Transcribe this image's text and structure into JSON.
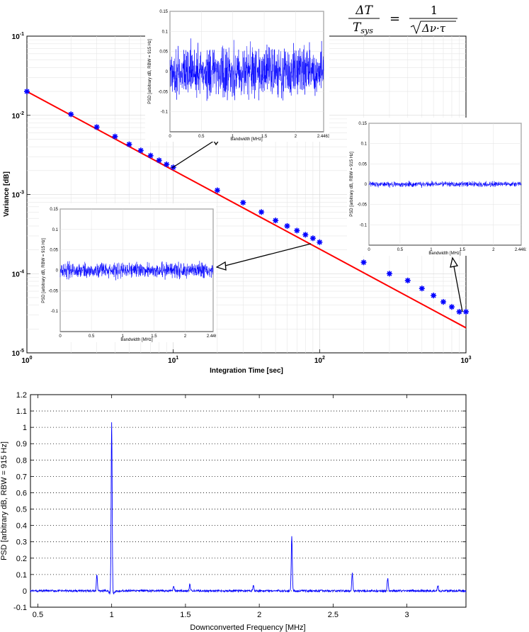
{
  "formula": {
    "numerator": "ΔT",
    "denominator_main": "T",
    "denominator_sub": "sys",
    "equals": "=",
    "rhs_numerator": "1",
    "rhs_radicand": "Δν·τ"
  },
  "chart_data": [
    {
      "id": "variance",
      "type": "scatter",
      "xscale": "log",
      "yscale": "log",
      "xlim": [
        1,
        1000
      ],
      "ylim": [
        1e-05,
        0.1
      ],
      "xlabel": "Integration Time [sec]",
      "ylabel": "Variance [dB]",
      "x_major_ticks": [
        1,
        10,
        100,
        1000
      ],
      "x_tick_labels": [
        {
          "base": "10",
          "exp": "0"
        },
        {
          "base": "10",
          "exp": "1"
        },
        {
          "base": "10",
          "exp": "2"
        },
        {
          "base": "10",
          "exp": "3"
        }
      ],
      "y_major_ticks": [
        1e-05,
        0.0001,
        0.001,
        0.01,
        0.1
      ],
      "y_tick_labels": [
        {
          "base": "10",
          "exp": "-5"
        },
        {
          "base": "10",
          "exp": "-4"
        },
        {
          "base": "10",
          "exp": "-3"
        },
        {
          "base": "10",
          "exp": "-2"
        },
        {
          "base": "10",
          "exp": "-1"
        }
      ],
      "grid": true,
      "series": [
        {
          "kind": "points",
          "marker": "asterisk",
          "color": "#0000ff",
          "points": [
            [
              1,
              0.02
            ],
            [
              2,
              0.0103
            ],
            [
              3,
              0.0071
            ],
            [
              4,
              0.0054
            ],
            [
              5,
              0.0043
            ],
            [
              6,
              0.0036
            ],
            [
              7,
              0.0031
            ],
            [
              8,
              0.0027
            ],
            [
              9,
              0.0024
            ],
            [
              10,
              0.0022
            ],
            [
              20,
              0.00113
            ],
            [
              30,
              0.00079
            ],
            [
              40,
              0.0006
            ],
            [
              50,
              0.00047
            ],
            [
              60,
              0.0004
            ],
            [
              70,
              0.00035
            ],
            [
              80,
              0.00031
            ],
            [
              90,
              0.00028
            ],
            [
              100,
              0.00025
            ],
            [
              200,
              0.000139
            ],
            [
              300,
              0.0001
            ],
            [
              400,
              8.2e-05
            ],
            [
              500,
              6.5e-05
            ],
            [
              600,
              5.3e-05
            ],
            [
              700,
              4.4e-05
            ],
            [
              800,
              3.8e-05
            ],
            [
              900,
              3.3e-05
            ],
            [
              1000,
              3.3e-05
            ]
          ]
        },
        {
          "kind": "line",
          "color": "#ff0000",
          "points": [
            [
              1,
              0.02
            ],
            [
              1000,
              2.07e-05
            ]
          ]
        }
      ]
    },
    {
      "id": "inset-1",
      "type": "line",
      "xlim": [
        0,
        2.4463
      ],
      "ylim": [
        -0.15,
        0.15
      ],
      "x_tick_values": [
        0,
        0.5,
        1,
        1.5,
        2,
        2.4463
      ],
      "x_tick_labels": [
        "0",
        "0.5",
        "1",
        "1.5",
        "2",
        "2.4463"
      ],
      "y_tick_values": [
        -0.1,
        -0.05,
        0,
        0.05,
        0.1,
        0.15
      ],
      "y_tick_labels": [
        "-0.1",
        "-0.05",
        "0",
        "0.05",
        "0.1",
        "0.15"
      ],
      "xlabel": "Bandwidth [MHz]",
      "ylabel": "PSD [arbitrary dB, RBW = 915 Hz]",
      "noise_amplitude": 0.075,
      "color": "#0000ff"
    },
    {
      "id": "inset-2",
      "type": "line",
      "xlim": [
        0,
        2.4463
      ],
      "ylim": [
        -0.15,
        0.15
      ],
      "x_tick_values": [
        0,
        0.5,
        1,
        1.5,
        2,
        2.4463
      ],
      "x_tick_labels": [
        "0",
        "0.5",
        "1",
        "1.5",
        "2",
        "2.4463"
      ],
      "y_tick_values": [
        -0.1,
        -0.05,
        0,
        0.05,
        0.1,
        0.15
      ],
      "y_tick_labels": [
        "-0.1",
        "-0.05",
        "0",
        "0.05",
        "0.1",
        "0.15"
      ],
      "xlabel": "Bandwidth [MHz]",
      "ylabel": "PSD [arbitrary dB, RBW = 915 Hz]",
      "noise_amplitude": 0.022,
      "color": "#0000ff"
    },
    {
      "id": "inset-3",
      "type": "line",
      "xlim": [
        0,
        2.4463
      ],
      "ylim": [
        -0.15,
        0.15
      ],
      "x_tick_values": [
        0,
        0.5,
        1,
        1.5,
        2,
        2.4463
      ],
      "x_tick_labels": [
        "0",
        "0.5",
        "1",
        "1.5",
        "2",
        "2.4463"
      ],
      "y_tick_values": [
        -0.1,
        -0.05,
        0,
        0.05,
        0.1,
        0.15
      ],
      "y_tick_labels": [
        "-0.1",
        "-0.05",
        "0",
        "0.05",
        "0.1",
        "0.15"
      ],
      "xlabel": "Bandwidth [MHz]",
      "ylabel": "PSD [arbitrary dB, RBW = 915 Hz]",
      "noise_amplitude": 0.008,
      "color": "#0000ff"
    },
    {
      "id": "psd",
      "type": "line",
      "xlim": [
        0.45,
        3.4
      ],
      "ylim": [
        -0.1,
        1.2
      ],
      "x_tick_values": [
        0.5,
        1,
        1.5,
        2,
        2.5,
        3
      ],
      "x_tick_labels": [
        "0.5",
        "1",
        "1.5",
        "2",
        "2.5",
        "3"
      ],
      "y_tick_values": [
        -0.1,
        0,
        0.1,
        0.2,
        0.3,
        0.4,
        0.5,
        0.6,
        0.7,
        0.8,
        0.9,
        1,
        1.1,
        1.2
      ],
      "y_tick_labels": [
        "-0.1",
        "0",
        "0.1",
        "0.2",
        "0.3",
        "0.4",
        "0.5",
        "0.6",
        "0.7",
        "0.8",
        "0.9",
        "1",
        "1.1",
        "1.2"
      ],
      "xlabel": "Downconverted Frequency [MHz]",
      "ylabel": "PSD [arbitrary dB, RBW = 915 Hz]",
      "grid": "dotted-horizontal",
      "color": "#0000ff",
      "noise_amplitude": 0.006,
      "peaks": [
        {
          "x": 0.9,
          "y": 0.1
        },
        {
          "x": 1.0,
          "y": 1.03
        },
        {
          "x": 1.42,
          "y": 0.03
        },
        {
          "x": 1.53,
          "y": 0.04
        },
        {
          "x": 1.96,
          "y": 0.04
        },
        {
          "x": 2.22,
          "y": 0.34
        },
        {
          "x": 2.63,
          "y": 0.11
        },
        {
          "x": 2.87,
          "y": 0.08
        },
        {
          "x": 3.21,
          "y": 0.03
        }
      ]
    }
  ]
}
